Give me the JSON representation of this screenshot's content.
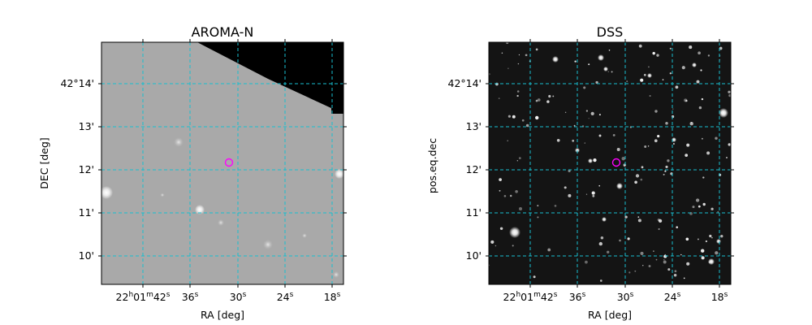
{
  "panels": [
    {
      "title": "AROMA-N",
      "xlabel": "RA [deg]",
      "ylabel": "DEC [deg]",
      "ra_ticks": [
        "22h01m42s",
        "36s",
        "30s",
        "24s",
        "18s"
      ],
      "dec_ticks": [
        "42°14'",
        "13'",
        "12'",
        "11'",
        "10'"
      ]
    },
    {
      "title": "DSS",
      "xlabel": "RA [deg]",
      "ylabel": "pos.eq.dec",
      "ra_ticks": [
        "22h01m42s",
        "36s",
        "30s",
        "24s",
        "18s"
      ],
      "dec_ticks": [
        "42°14'",
        "13'",
        "12'",
        "11'",
        "10'"
      ]
    }
  ],
  "colors": {
    "grid": "#17becf",
    "marker": "#ff00ff",
    "aroma_background": "#a9a9a9",
    "dss_background": "#141414"
  }
}
